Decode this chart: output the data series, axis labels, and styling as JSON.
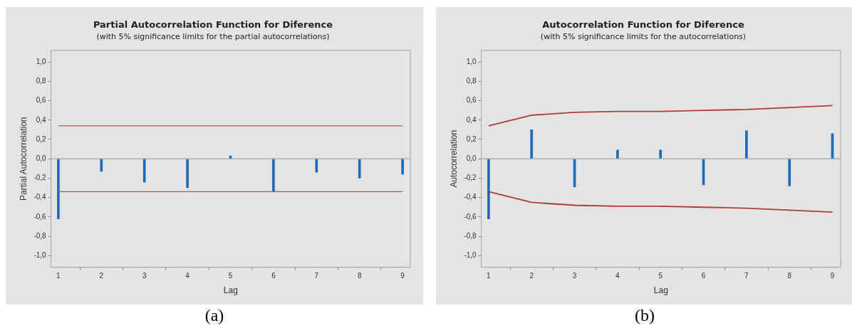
{
  "chart_data": [
    {
      "type": "bar",
      "title": "Partial Autocorrelation Function for Diference",
      "subtitle": "(with 5% significance limits for the partial autocorrelations)",
      "xlabel": "Lag",
      "ylabel": "Partial Autocorrelation",
      "annotations": [
        "(a)"
      ],
      "x": [
        1,
        2,
        3,
        4,
        5,
        6,
        7,
        8,
        9
      ],
      "series": [
        {
          "color": "#1f6bb8",
          "values": [
            -0.62,
            -0.13,
            -0.24,
            -0.3,
            0.03,
            -0.34,
            -0.14,
            -0.2,
            -0.16
          ]
        }
      ],
      "ref_lines": [
        {
          "axis": "y",
          "value": 0.34,
          "color": "#c0504d"
        },
        {
          "axis": "y",
          "value": -0.34,
          "color": "#c0504d"
        },
        {
          "axis": "y",
          "value": 0,
          "color": "#a6a6a6"
        }
      ],
      "xlim": [
        0.83,
        9.18
      ],
      "ylim": [
        -1.12,
        1.12
      ],
      "xticks": [
        1,
        2,
        3,
        4,
        5,
        6,
        7,
        8,
        9
      ],
      "yticks": [
        {
          "value": 1,
          "label": "1,0"
        },
        {
          "value": 0.8,
          "label": "0,8"
        },
        {
          "value": 0.6,
          "label": "0,6"
        },
        {
          "value": 0.4,
          "label": "0,4"
        },
        {
          "value": 0.2,
          "label": "0,2"
        },
        {
          "value": 0,
          "label": "0,0"
        },
        {
          "value": -0.2,
          "label": "-0,2"
        },
        {
          "value": -0.4,
          "label": "-0,4"
        },
        {
          "value": -0.6,
          "label": "-0,6"
        },
        {
          "value": -0.8,
          "label": "-0,8"
        },
        {
          "value": -1,
          "label": "-1,0"
        }
      ],
      "grid": false,
      "legend": false
    },
    {
      "type": "bar",
      "title": "Autocorrelation Function for Diference",
      "subtitle": "(with 5% significance limits for the autocorrelations)",
      "xlabel": "Lag",
      "ylabel": "Autocorrelation",
      "annotations": [
        "(b)"
      ],
      "x": [
        1,
        2,
        3,
        4,
        5,
        6,
        7,
        8,
        9
      ],
      "series": [
        {
          "color": "#1f6bb8",
          "values": [
            -0.62,
            0.3,
            -0.29,
            0.09,
            0.09,
            -0.27,
            0.29,
            -0.28,
            0.26
          ]
        },
        {
          "type": "line",
          "color": "#b03a3a",
          "values": [
            0.34,
            0.45,
            0.48,
            0.49,
            0.49,
            0.5,
            0.51,
            0.53,
            0.55
          ]
        },
        {
          "type": "line",
          "color": "#b03a3a",
          "values": [
            -0.34,
            -0.45,
            -0.48,
            -0.49,
            -0.49,
            -0.5,
            -0.51,
            -0.53,
            -0.55
          ]
        }
      ],
      "ref_lines": [
        {
          "axis": "y",
          "value": 0,
          "color": "#a6a6a6"
        }
      ],
      "xlim": [
        0.83,
        9.19
      ],
      "ylim": [
        -1.12,
        1.12
      ],
      "xticks": [
        1,
        2,
        3,
        4,
        5,
        6,
        7,
        8,
        9
      ],
      "yticks": [
        {
          "value": 1,
          "label": "1,0"
        },
        {
          "value": 0.8,
          "label": "0,8"
        },
        {
          "value": 0.6,
          "label": "0,6"
        },
        {
          "value": 0.4,
          "label": "0,4"
        },
        {
          "value": 0.2,
          "label": "0,2"
        },
        {
          "value": 0,
          "label": "0,0"
        },
        {
          "value": -0.2,
          "label": "-0,2"
        },
        {
          "value": -0.4,
          "label": "-0,4"
        },
        {
          "value": -0.6,
          "label": "-0,6"
        },
        {
          "value": -0.8,
          "label": "-0,8"
        },
        {
          "value": -1,
          "label": "-1,0"
        }
      ],
      "grid": false,
      "legend": false
    }
  ]
}
